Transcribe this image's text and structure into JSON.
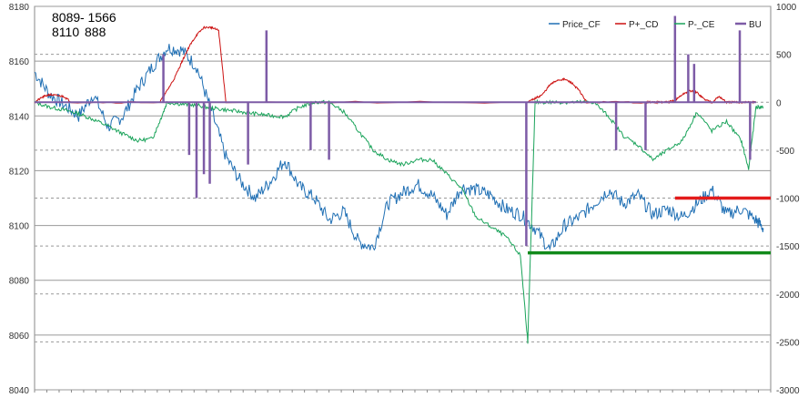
{
  "readout": {
    "row1_a": "8089",
    "row1_b": "- 1566",
    "row2_a": "8110",
    "row2_b": "888"
  },
  "chart_data": {
    "type": "line",
    "title": "",
    "xlabel": "",
    "ylabel": "",
    "grid": true,
    "legend_position": "top-right",
    "y_left": {
      "min": 8040,
      "max": 8180,
      "ticks": [
        8040,
        8060,
        8080,
        8100,
        8120,
        8140,
        8160,
        8180
      ]
    },
    "y_right": {
      "min": -3000,
      "max": 1000,
      "ticks": [
        -3000,
        -2500,
        -2000,
        -1500,
        -1000,
        -500,
        0,
        500,
        1000
      ]
    },
    "x_range": [
      0,
      100
    ],
    "series": [
      {
        "name": "Price_CF",
        "color": "#1f6fb4",
        "axis": "left",
        "x": [
          0,
          2,
          4,
          6,
          8,
          10,
          12,
          14,
          16,
          18,
          20,
          22,
          24,
          26,
          28,
          30,
          32,
          34,
          36,
          38,
          40,
          42,
          44,
          46,
          48,
          50,
          52,
          54,
          56,
          58,
          60,
          62,
          64,
          66,
          68,
          70,
          72,
          74,
          76,
          78,
          80,
          82,
          84,
          86,
          88,
          90,
          92,
          94,
          96,
          98,
          99
        ],
        "values": [
          8156,
          8148,
          8144,
          8140,
          8148,
          8136,
          8140,
          8150,
          8158,
          8165,
          8164,
          8158,
          8142,
          8125,
          8116,
          8110,
          8116,
          8124,
          8114,
          8110,
          8102,
          8105,
          8094,
          8092,
          8108,
          8112,
          8115,
          8111,
          8104,
          8114,
          8113,
          8111,
          8106,
          8104,
          8099,
          8091,
          8100,
          8103,
          8108,
          8113,
          8108,
          8111,
          8104,
          8106,
          8103,
          8108,
          8113,
          8104,
          8106,
          8102,
          8099
        ]
      },
      {
        "name": "P+_CD",
        "color": "#cc1111",
        "axis": "right",
        "x": [
          0,
          1,
          2,
          3,
          4,
          5,
          17,
          18,
          19,
          20,
          21,
          22,
          23,
          24,
          25,
          26,
          67,
          68,
          69,
          70,
          71,
          72,
          73,
          74,
          75,
          83,
          84,
          85,
          86,
          87,
          88,
          89,
          90,
          91,
          92,
          93,
          94,
          95,
          96,
          97,
          98
        ],
        "values": [
          0,
          50,
          80,
          70,
          60,
          0,
          0,
          120,
          250,
          420,
          580,
          700,
          780,
          780,
          750,
          0,
          0,
          40,
          80,
          180,
          230,
          240,
          200,
          120,
          0,
          0,
          0,
          0,
          0,
          20,
          80,
          120,
          100,
          30,
          0,
          60,
          0,
          0,
          0,
          0,
          0
        ]
      },
      {
        "name": "P-_CE",
        "color": "#1aa35a",
        "axis": "right",
        "x": [
          0,
          2,
          4,
          6,
          8,
          10,
          12,
          14,
          16,
          17,
          18,
          20,
          22,
          24,
          26,
          28,
          30,
          32,
          34,
          36,
          38,
          40,
          42,
          44,
          46,
          48,
          50,
          52,
          54,
          56,
          58,
          60,
          62,
          64,
          66,
          67,
          68,
          70,
          72,
          74,
          76,
          78,
          80,
          82,
          84,
          86,
          88,
          90,
          92,
          94,
          96,
          97,
          98,
          99
        ],
        "values": [
          0,
          -50,
          -80,
          -120,
          -180,
          -250,
          -330,
          -400,
          -380,
          -200,
          0,
          -20,
          -30,
          -60,
          -80,
          -100,
          -120,
          -140,
          -150,
          -50,
          0,
          0,
          -100,
          -300,
          -500,
          -600,
          -650,
          -600,
          -600,
          -750,
          -900,
          -1200,
          -1300,
          -1400,
          -1600,
          -2500,
          0,
          0,
          0,
          0,
          0,
          -150,
          -350,
          -450,
          -600,
          -500,
          -400,
          -100,
          -300,
          -200,
          -400,
          -700,
          -50,
          -50
        ]
      },
      {
        "name": "BU",
        "color": "#7d5ba6",
        "axis": "right",
        "baseline": 0,
        "spikes": [
          {
            "x": 17.5,
            "value": 500
          },
          {
            "x": 21,
            "value": -550
          },
          {
            "x": 22,
            "value": -1000
          },
          {
            "x": 23,
            "value": -750
          },
          {
            "x": 23.8,
            "value": -850
          },
          {
            "x": 29,
            "value": -650
          },
          {
            "x": 31.5,
            "value": 750
          },
          {
            "x": 37.5,
            "value": -500
          },
          {
            "x": 40,
            "value": -600
          },
          {
            "x": 66.8,
            "value": -1500
          },
          {
            "x": 79,
            "value": -500
          },
          {
            "x": 83,
            "value": -500
          },
          {
            "x": 87,
            "value": 900
          },
          {
            "x": 88.8,
            "value": 500
          },
          {
            "x": 89.6,
            "value": 400
          },
          {
            "x": 95.8,
            "value": 750
          },
          {
            "x": 97.2,
            "value": -600
          }
        ]
      }
    ],
    "reference_lines": [
      {
        "color": "#e31b1b",
        "axis": "left",
        "value": 8110,
        "x_start": 87,
        "x_end": 100
      },
      {
        "color": "#118a1a",
        "axis": "left",
        "value": 8090,
        "x_start": 67,
        "x_end": 100
      }
    ]
  }
}
